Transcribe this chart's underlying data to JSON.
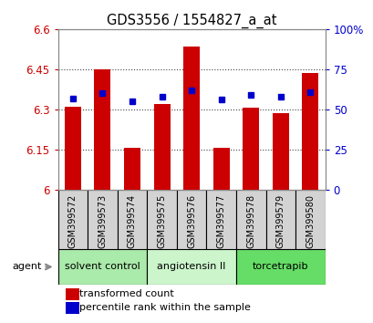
{
  "title": "GDS3556 / 1554827_a_at",
  "samples": [
    "GSM399572",
    "GSM399573",
    "GSM399574",
    "GSM399575",
    "GSM399576",
    "GSM399577",
    "GSM399578",
    "GSM399579",
    "GSM399580"
  ],
  "red_values": [
    6.31,
    6.45,
    6.155,
    6.32,
    6.535,
    6.155,
    6.305,
    6.285,
    6.435
  ],
  "blue_values": [
    57,
    60,
    55,
    58,
    62,
    56,
    59,
    58,
    61
  ],
  "ylim_left": [
    6.0,
    6.6
  ],
  "ylim_right": [
    0,
    100
  ],
  "yticks_left": [
    6.0,
    6.15,
    6.3,
    6.45,
    6.6
  ],
  "yticks_right": [
    0,
    25,
    50,
    75,
    100
  ],
  "ytick_labels_left": [
    "6",
    "6.15",
    "6.3",
    "6.45",
    "6.6"
  ],
  "ytick_labels_right": [
    "0",
    "25",
    "50",
    "75",
    "100%"
  ],
  "groups": [
    {
      "label": "solvent control",
      "indices": [
        0,
        1,
        2
      ],
      "color": "#aaeaaa"
    },
    {
      "label": "angiotensin II",
      "indices": [
        3,
        4,
        5
      ],
      "color": "#ccf5cc"
    },
    {
      "label": "torcetrapib",
      "indices": [
        6,
        7,
        8
      ],
      "color": "#66dd66"
    }
  ],
  "bar_color": "#cc0000",
  "dot_color": "#0000cc",
  "bar_width": 0.55,
  "background_color": "#ffffff",
  "sample_bg_color": "#d3d3d3",
  "agent_label": "agent"
}
